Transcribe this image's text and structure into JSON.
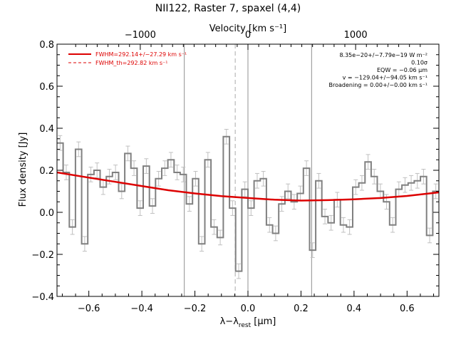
{
  "chart_data": {
    "type": "line",
    "title": "NII122, Raster 7, spaxel (4,4)",
    "xlabel": "λ−λrest [μm]",
    "xlabel_main": "λ−λ",
    "xlabel_sub": "rest",
    "xlabel_unit": " [μm]",
    "ylabel": "Flux density [Jy]",
    "top_axis_label": "Velocity [km s⁻¹]",
    "xlim": [
      -0.72,
      0.72
    ],
    "ylim": [
      -0.4,
      0.8
    ],
    "x_ticks": [
      -0.6,
      -0.4,
      -0.2,
      0.0,
      0.2,
      0.4,
      0.6
    ],
    "x_tick_labels": [
      "−0.6",
      "−0.4",
      "−0.2",
      "0.0",
      "0.2",
      "0.4",
      "0.6"
    ],
    "y_ticks": [
      -0.4,
      -0.2,
      0.0,
      0.2,
      0.4,
      0.6,
      0.8
    ],
    "y_tick_labels": [
      "−0.4",
      "−0.2",
      "0.0",
      "0.2",
      "0.4",
      "0.6",
      "0.8"
    ],
    "top_ticks_velocity": [
      -1000,
      0,
      1000
    ],
    "top_tick_labels": [
      "−1000",
      "0",
      "1000"
    ],
    "top_axis_um_per_kms": 0.000406,
    "vertical_lines_solid": [
      -0.24,
      0.0,
      0.24
    ],
    "vertical_line_dashed": -0.048,
    "legend_placement": "top-left",
    "legend": [
      {
        "label": "FWHM=292.14+/−27.29 km s⁻¹",
        "style": "solid",
        "color": "#dd0000"
      },
      {
        "label": "FWHM_th=292.82 km s⁻¹",
        "style": "dashed",
        "color": "#dd0000"
      }
    ],
    "annotations": [
      "8.35e−20+/−7.79e−19 W m⁻²",
      "0.10σ",
      "EQW = −0.06 μm",
      "v = −129.04+/−94.05 km s⁻¹",
      "Broadening = 0.00+/−0.00 km s⁻¹"
    ],
    "spectrum": {
      "style": "histogram",
      "color": "#808080",
      "x_start": -0.72,
      "x_end": 0.72,
      "values": [
        0.33,
        0.19,
        -0.07,
        0.3,
        -0.15,
        0.18,
        0.2,
        0.12,
        0.17,
        0.19,
        0.1,
        0.28,
        0.21,
        0.02,
        0.22,
        0.03,
        0.16,
        0.21,
        0.25,
        0.19,
        0.18,
        0.04,
        0.16,
        -0.15,
        0.25,
        -0.07,
        -0.12,
        0.36,
        0.02,
        -0.28,
        0.11,
        0.02,
        0.15,
        0.16,
        -0.06,
        -0.1,
        0.04,
        0.1,
        0.05,
        0.09,
        0.21,
        -0.18,
        0.15,
        -0.02,
        -0.05,
        0.06,
        -0.06,
        -0.07,
        0.12,
        0.14,
        0.24,
        0.17,
        0.1,
        0.05,
        -0.06,
        0.11,
        0.13,
        0.14,
        0.15,
        0.17,
        -0.11,
        0.1
      ],
      "error": 0.035
    },
    "fit": {
      "color": "#dd0000",
      "x": [
        -0.72,
        -0.6,
        -0.5,
        -0.4,
        -0.3,
        -0.2,
        -0.1,
        0.0,
        0.1,
        0.2,
        0.3,
        0.4,
        0.5,
        0.6,
        0.72
      ],
      "y": [
        0.19,
        0.165,
        0.145,
        0.125,
        0.105,
        0.09,
        0.077,
        0.068,
        0.06,
        0.056,
        0.058,
        0.062,
        0.068,
        0.078,
        0.095
      ]
    }
  }
}
